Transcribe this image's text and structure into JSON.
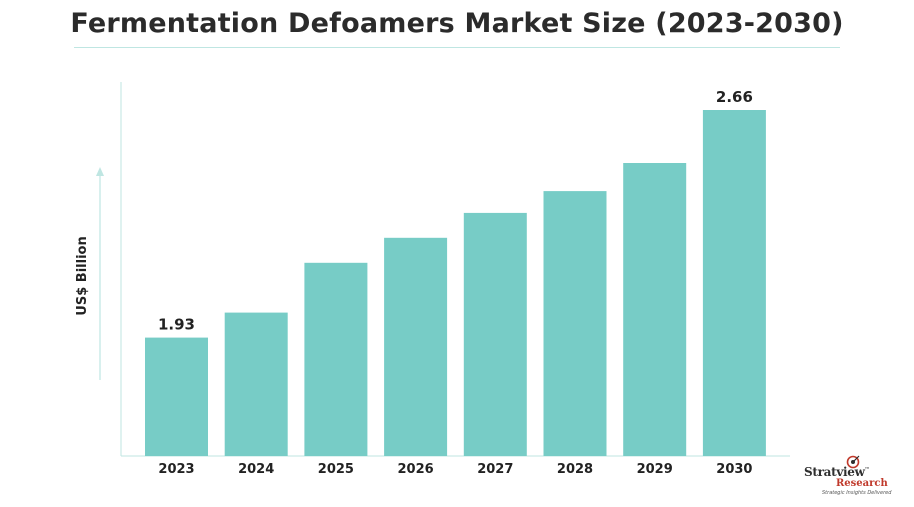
{
  "chart_data": {
    "type": "bar",
    "title": "Fermentation Defoamers Market Size (2023-2030)",
    "ylabel": "US$ Billion",
    "xlabel": "",
    "categories": [
      "2023",
      "2024",
      "2025",
      "2026",
      "2027",
      "2028",
      "2029",
      "2030"
    ],
    "values": [
      1.93,
      2.01,
      2.17,
      2.25,
      2.33,
      2.4,
      2.49,
      2.66
    ],
    "data_labels": [
      "1.93",
      "",
      "",
      "",
      "",
      "",
      "",
      "2.66"
    ],
    "ylim": [
      1.55,
      2.75
    ],
    "bar_color": "#77ccc6",
    "axis_color": "#bfe6e2",
    "grid": false,
    "legend": "none"
  },
  "brand": {
    "name": "Stratview",
    "sub": "Research",
    "tagline": "Strategic Insights Delivered",
    "tm": "™"
  }
}
